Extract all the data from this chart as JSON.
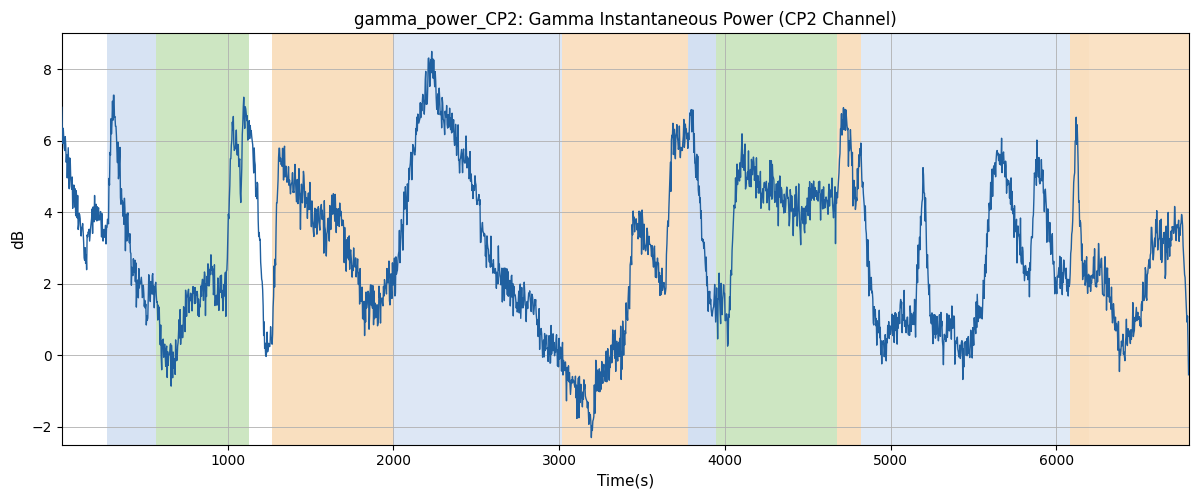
{
  "title": "gamma_power_CP2: Gamma Instantaneous Power (CP2 Channel)",
  "xlabel": "Time(s)",
  "ylabel": "dB",
  "xlim": [
    0,
    6800
  ],
  "ylim": [
    -2.5,
    9.0
  ],
  "yticks": [
    -2,
    0,
    2,
    4,
    6,
    8
  ],
  "xticks": [
    1000,
    2000,
    3000,
    4000,
    5000,
    6000
  ],
  "line_color": "#2060a0",
  "line_width": 1.0,
  "bg_bands": [
    {
      "xmin": 270,
      "xmax": 570,
      "color": "#b0c8e8",
      "alpha": 0.5
    },
    {
      "xmin": 570,
      "xmax": 1130,
      "color": "#90c878",
      "alpha": 0.45
    },
    {
      "xmin": 1270,
      "xmax": 2000,
      "color": "#f5c080",
      "alpha": 0.5
    },
    {
      "xmin": 2000,
      "xmax": 3020,
      "color": "#b0c8e8",
      "alpha": 0.42
    },
    {
      "xmin": 3020,
      "xmax": 3780,
      "color": "#f5c080",
      "alpha": 0.48
    },
    {
      "xmin": 3780,
      "xmax": 3950,
      "color": "#b0c8e8",
      "alpha": 0.55
    },
    {
      "xmin": 3950,
      "xmax": 4680,
      "color": "#90c878",
      "alpha": 0.45
    },
    {
      "xmin": 4680,
      "xmax": 4820,
      "color": "#f5c080",
      "alpha": 0.5
    },
    {
      "xmin": 4820,
      "xmax": 6080,
      "color": "#b0c8e8",
      "alpha": 0.38
    },
    {
      "xmin": 6080,
      "xmax": 6200,
      "color": "#f5c080",
      "alpha": 0.5
    },
    {
      "xmin": 6200,
      "xmax": 6800,
      "color": "#f5c080",
      "alpha": 0.45
    }
  ],
  "seed": 7,
  "total_points": 6800,
  "signal_waypoints": [
    [
      0,
      6.4
    ],
    [
      100,
      3.8
    ],
    [
      150,
      3.0
    ],
    [
      200,
      4.2
    ],
    [
      270,
      3.2
    ],
    [
      310,
      7.3
    ],
    [
      360,
      4.5
    ],
    [
      390,
      3.8
    ],
    [
      440,
      2.2
    ],
    [
      480,
      2.0
    ],
    [
      510,
      1.3
    ],
    [
      545,
      2.2
    ],
    [
      570,
      1.5
    ],
    [
      600,
      0.2
    ],
    [
      640,
      -0.1
    ],
    [
      680,
      0.0
    ],
    [
      710,
      0.5
    ],
    [
      750,
      1.5
    ],
    [
      800,
      1.8
    ],
    [
      830,
      1.5
    ],
    [
      870,
      2.0
    ],
    [
      900,
      2.5
    ],
    [
      930,
      1.5
    ],
    [
      960,
      1.7
    ],
    [
      990,
      1.5
    ],
    [
      1020,
      5.8
    ],
    [
      1050,
      6.3
    ],
    [
      1080,
      5.0
    ],
    [
      1100,
      6.9
    ],
    [
      1120,
      6.4
    ],
    [
      1130,
      6.2
    ],
    [
      1160,
      5.8
    ],
    [
      1200,
      2.8
    ],
    [
      1230,
      -0.2
    ],
    [
      1270,
      0.6
    ],
    [
      1310,
      5.7
    ],
    [
      1350,
      5.2
    ],
    [
      1380,
      5.0
    ],
    [
      1420,
      4.5
    ],
    [
      1460,
      4.4
    ],
    [
      1500,
      4.2
    ],
    [
      1530,
      3.8
    ],
    [
      1560,
      4.0
    ],
    [
      1600,
      3.2
    ],
    [
      1640,
      4.4
    ],
    [
      1680,
      3.8
    ],
    [
      1730,
      3.0
    ],
    [
      1780,
      2.5
    ],
    [
      1820,
      1.3
    ],
    [
      1860,
      1.5
    ],
    [
      1900,
      1.3
    ],
    [
      1960,
      2.0
    ],
    [
      2000,
      2.0
    ],
    [
      2050,
      3.5
    ],
    [
      2100,
      5.0
    ],
    [
      2150,
      6.5
    ],
    [
      2200,
      7.6
    ],
    [
      2230,
      8.0
    ],
    [
      2260,
      7.4
    ],
    [
      2300,
      6.6
    ],
    [
      2350,
      6.5
    ],
    [
      2400,
      5.5
    ],
    [
      2450,
      5.3
    ],
    [
      2500,
      4.5
    ],
    [
      2550,
      3.0
    ],
    [
      2600,
      2.5
    ],
    [
      2650,
      2.2
    ],
    [
      2700,
      2.0
    ],
    [
      2750,
      1.5
    ],
    [
      2800,
      1.5
    ],
    [
      2850,
      1.5
    ],
    [
      2900,
      0.4
    ],
    [
      2950,
      0.3
    ],
    [
      3000,
      0.1
    ],
    [
      3030,
      -0.3
    ],
    [
      3060,
      -0.5
    ],
    [
      3090,
      -1.0
    ],
    [
      3120,
      -0.8
    ],
    [
      3150,
      -1.2
    ],
    [
      3180,
      -1.5
    ],
    [
      3200,
      -1.8
    ],
    [
      3230,
      -0.6
    ],
    [
      3260,
      -0.4
    ],
    [
      3290,
      -0.5
    ],
    [
      3320,
      0.1
    ],
    [
      3360,
      0.3
    ],
    [
      3400,
      0.4
    ],
    [
      3450,
      3.8
    ],
    [
      3500,
      3.3
    ],
    [
      3550,
      3.1
    ],
    [
      3600,
      2.2
    ],
    [
      3640,
      1.9
    ],
    [
      3680,
      5.9
    ],
    [
      3730,
      6.0
    ],
    [
      3760,
      6.0
    ],
    [
      3800,
      6.7
    ],
    [
      3830,
      5.5
    ],
    [
      3860,
      3.6
    ],
    [
      3900,
      1.7
    ],
    [
      3950,
      1.2
    ],
    [
      3990,
      1.5
    ],
    [
      4020,
      0.5
    ],
    [
      4060,
      4.6
    ],
    [
      4100,
      5.5
    ],
    [
      4130,
      5.4
    ],
    [
      4160,
      5.2
    ],
    [
      4200,
      5.0
    ],
    [
      4240,
      4.6
    ],
    [
      4280,
      4.8
    ],
    [
      4320,
      4.5
    ],
    [
      4360,
      4.3
    ],
    [
      4400,
      4.1
    ],
    [
      4440,
      4.0
    ],
    [
      4480,
      3.8
    ],
    [
      4520,
      4.5
    ],
    [
      4560,
      4.6
    ],
    [
      4600,
      4.5
    ],
    [
      4640,
      4.4
    ],
    [
      4680,
      4.2
    ],
    [
      4700,
      6.3
    ],
    [
      4730,
      6.5
    ],
    [
      4760,
      5.8
    ],
    [
      4790,
      4.2
    ],
    [
      4820,
      5.9
    ],
    [
      4850,
      3.5
    ],
    [
      4900,
      1.0
    ],
    [
      4950,
      0.3
    ],
    [
      5000,
      0.5
    ],
    [
      5050,
      1.1
    ],
    [
      5100,
      1.0
    ],
    [
      5150,
      1.2
    ],
    [
      5200,
      5.1
    ],
    [
      5240,
      1.0
    ],
    [
      5280,
      0.8
    ],
    [
      5320,
      0.5
    ],
    [
      5360,
      1.0
    ],
    [
      5400,
      0.2
    ],
    [
      5440,
      0.1
    ],
    [
      5480,
      0.2
    ],
    [
      5520,
      1.0
    ],
    [
      5560,
      1.5
    ],
    [
      5600,
      4.5
    ],
    [
      5640,
      5.5
    ],
    [
      5680,
      5.6
    ],
    [
      5720,
      4.5
    ],
    [
      5760,
      3.5
    ],
    [
      5800,
      2.5
    ],
    [
      5840,
      2.0
    ],
    [
      5880,
      5.8
    ],
    [
      5920,
      4.5
    ],
    [
      5960,
      3.5
    ],
    [
      6000,
      2.0
    ],
    [
      6040,
      2.5
    ],
    [
      6080,
      2.0
    ],
    [
      6120,
      6.3
    ],
    [
      6160,
      2.5
    ],
    [
      6200,
      2.0
    ],
    [
      6240,
      2.5
    ],
    [
      6280,
      2.3
    ],
    [
      6320,
      1.8
    ],
    [
      6360,
      0.5
    ],
    [
      6400,
      0.2
    ],
    [
      6440,
      0.5
    ],
    [
      6480,
      0.8
    ],
    [
      6520,
      1.5
    ],
    [
      6560,
      2.5
    ],
    [
      6600,
      3.5
    ],
    [
      6640,
      3.2
    ],
    [
      6680,
      3.0
    ],
    [
      6720,
      3.5
    ],
    [
      6760,
      3.8
    ],
    [
      6800,
      -0.2
    ]
  ]
}
